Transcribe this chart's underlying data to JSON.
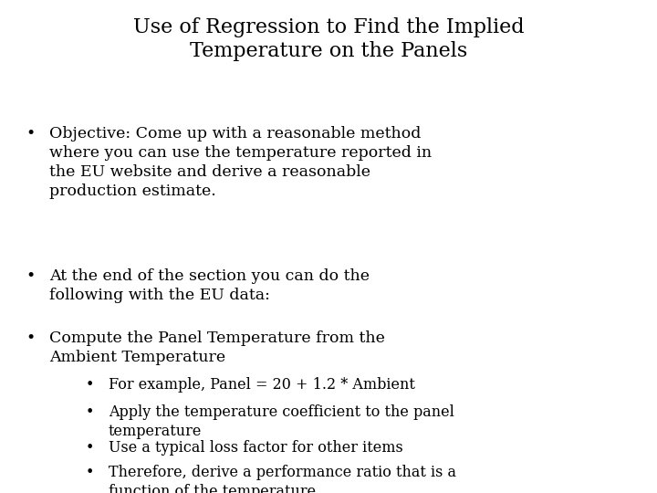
{
  "title_line1": "Use of Regression to Find the Implied",
  "title_line2": "Temperature on the Panels",
  "background_color": "#ffffff",
  "text_color": "#000000",
  "title_fontsize": 16,
  "body_fontsize": 12.5,
  "sub_fontsize": 11.5,
  "font_family": "DejaVu Serif",
  "bullet1": "Objective: Come up with a reasonable method\nwhere you can use the temperature reported in\nthe EU website and derive a reasonable\nproduction estimate.",
  "bullet2": "At the end of the section you can do the\nfollowing with the EU data:",
  "bullet3": "Compute the Panel Temperature from the\nAmbient Temperature",
  "sub_bullet1": "For example, Panel = 20 + 1.2 * Ambient",
  "sub_bullet2": "Apply the temperature coefficient to the panel\ntemperature",
  "sub_bullet3": "Use a typical loss factor for other items",
  "sub_bullet4": "Therefore, derive a performance ratio that is a\nfunction of the temperature"
}
